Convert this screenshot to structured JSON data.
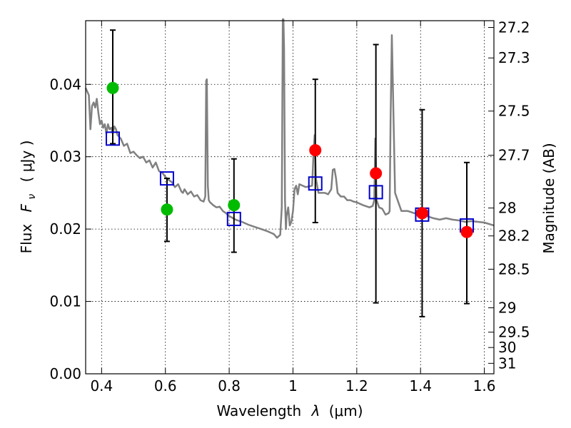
{
  "chart_data": {
    "type": "scatter",
    "xlabel_text": "Wavelength",
    "xlabel_symbol": "λ",
    "xlabel_unit": "(μm)",
    "ylabel_text": "Flux",
    "ylabel_symbol_main": "F",
    "ylabel_symbol_sub": "ν",
    "ylabel_unit": "( μJy )",
    "y2label": "Magnitude (AB)",
    "xlim": [
      0.35,
      1.63
    ],
    "ylim": [
      0.0,
      0.0488
    ],
    "grid": true,
    "x_ticks": [
      {
        "value": 0.4,
        "label": "0.4"
      },
      {
        "value": 0.6,
        "label": "0.6"
      },
      {
        "value": 0.8,
        "label": "0.8"
      },
      {
        "value": 1.0,
        "label": "1"
      },
      {
        "value": 1.2,
        "label": "1.2"
      },
      {
        "value": 1.4,
        "label": "1.4"
      },
      {
        "value": 1.6,
        "label": "1.6"
      }
    ],
    "y_ticks": [
      {
        "value": 0.0,
        "label": "0.00"
      },
      {
        "value": 0.01,
        "label": "0.01"
      },
      {
        "value": 0.02,
        "label": "0.02"
      },
      {
        "value": 0.03,
        "label": "0.03"
      },
      {
        "value": 0.04,
        "label": "0.04"
      }
    ],
    "y2_ticks": [
      {
        "label": "27.2"
      },
      {
        "label": "27.3"
      },
      {
        "label": "27.5"
      },
      {
        "label": "27.7"
      },
      {
        "label": "28"
      },
      {
        "label": "28.2"
      },
      {
        "label": "28.5"
      },
      {
        "label": "29"
      },
      {
        "label": "29.5"
      },
      {
        "label": "30"
      },
      {
        "label": "31"
      }
    ],
    "series": [
      {
        "marker": "square-open",
        "color": "#0000cc",
        "x": [
          0.435,
          0.605,
          0.815,
          1.07,
          1.26,
          1.405,
          1.545
        ],
        "y": [
          0.0325,
          0.027,
          0.0214,
          0.0263,
          0.0251,
          0.022,
          0.0205
        ]
      },
      {
        "marker": "circle-filled",
        "color": "#00bb00",
        "x": [
          0.435,
          0.605,
          0.815
        ],
        "y": [
          0.0395,
          0.0227,
          0.0233
        ],
        "err_low": [
          0.0318,
          0.0183,
          0.0168
        ],
        "err_high": [
          0.0475,
          0.027,
          0.0297
        ]
      },
      {
        "marker": "circle-filled",
        "color": "#ff0000",
        "x": [
          1.07,
          1.26,
          1.405,
          1.545
        ],
        "y": [
          0.0309,
          0.0277,
          0.0222,
          0.0196
        ],
        "err_low": [
          0.0209,
          0.0098,
          0.0079,
          0.0097
        ],
        "err_high": [
          0.0407,
          0.0455,
          0.0365,
          0.0292
        ]
      },
      {
        "marker": "line",
        "color": "#808080",
        "x": [
          0.35,
          0.36,
          0.365,
          0.37,
          0.375,
          0.38,
          0.385,
          0.39,
          0.395,
          0.4,
          0.405,
          0.41,
          0.415,
          0.42,
          0.425,
          0.43,
          0.435,
          0.44,
          0.445,
          0.45,
          0.46,
          0.47,
          0.48,
          0.49,
          0.5,
          0.51,
          0.52,
          0.53,
          0.54,
          0.55,
          0.56,
          0.57,
          0.58,
          0.59,
          0.6,
          0.61,
          0.62,
          0.63,
          0.64,
          0.65,
          0.655,
          0.66,
          0.67,
          0.68,
          0.69,
          0.7,
          0.71,
          0.72,
          0.725,
          0.728,
          0.73,
          0.733,
          0.736,
          0.74,
          0.75,
          0.76,
          0.77,
          0.78,
          0.79,
          0.8,
          0.82,
          0.84,
          0.86,
          0.88,
          0.9,
          0.92,
          0.94,
          0.95,
          0.96,
          0.965,
          0.968,
          0.97,
          0.972,
          0.975,
          0.978,
          0.98,
          0.985,
          0.99,
          0.995,
          1.0,
          1.005,
          1.01,
          1.015,
          1.02,
          1.04,
          1.06,
          1.065,
          1.068,
          1.072,
          1.08,
          1.1,
          1.11,
          1.12,
          1.125,
          1.13,
          1.135,
          1.14,
          1.15,
          1.16,
          1.17,
          1.18,
          1.19,
          1.2,
          1.22,
          1.24,
          1.25,
          1.255,
          1.258,
          1.262,
          1.27,
          1.28,
          1.29,
          1.3,
          1.303,
          1.306,
          1.31,
          1.32,
          1.34,
          1.36,
          1.38,
          1.4,
          1.42,
          1.44,
          1.46,
          1.48,
          1.5,
          1.52,
          1.54,
          1.56,
          1.58,
          1.6,
          1.63
        ],
        "y": [
          0.0395,
          0.0385,
          0.0338,
          0.037,
          0.0375,
          0.0368,
          0.038,
          0.036,
          0.0345,
          0.035,
          0.034,
          0.0345,
          0.0332,
          0.0345,
          0.0338,
          0.034,
          0.0332,
          0.0342,
          0.0338,
          0.033,
          0.0325,
          0.0315,
          0.0318,
          0.0305,
          0.0307,
          0.0302,
          0.0298,
          0.03,
          0.0292,
          0.0295,
          0.0285,
          0.0292,
          0.028,
          0.0278,
          0.0272,
          0.0268,
          0.0265,
          0.0258,
          0.0262,
          0.0252,
          0.025,
          0.0255,
          0.0248,
          0.0252,
          0.0245,
          0.0247,
          0.024,
          0.0238,
          0.0245,
          0.0405,
          0.0407,
          0.026,
          0.024,
          0.0237,
          0.0233,
          0.023,
          0.0231,
          0.0225,
          0.0222,
          0.0218,
          0.0213,
          0.021,
          0.0206,
          0.0203,
          0.02,
          0.0197,
          0.0193,
          0.0188,
          0.0192,
          0.023,
          0.049,
          0.049,
          0.045,
          0.024,
          0.02,
          0.0218,
          0.023,
          0.0205,
          0.021,
          0.0225,
          0.0255,
          0.026,
          0.0248,
          0.0262,
          0.0258,
          0.026,
          0.031,
          0.033,
          0.027,
          0.025,
          0.025,
          0.0248,
          0.0255,
          0.0282,
          0.0283,
          0.027,
          0.025,
          0.0245,
          0.0245,
          0.024,
          0.024,
          0.0238,
          0.0237,
          0.0233,
          0.023,
          0.0232,
          0.024,
          0.0325,
          0.024,
          0.023,
          0.0228,
          0.022,
          0.0222,
          0.0225,
          0.035,
          0.0468,
          0.025,
          0.0225,
          0.0225,
          0.0222,
          0.022,
          0.0218,
          0.0215,
          0.0213,
          0.0215,
          0.0213,
          0.0212,
          0.021,
          0.0211,
          0.021,
          0.0209,
          0.0205
        ]
      }
    ]
  }
}
